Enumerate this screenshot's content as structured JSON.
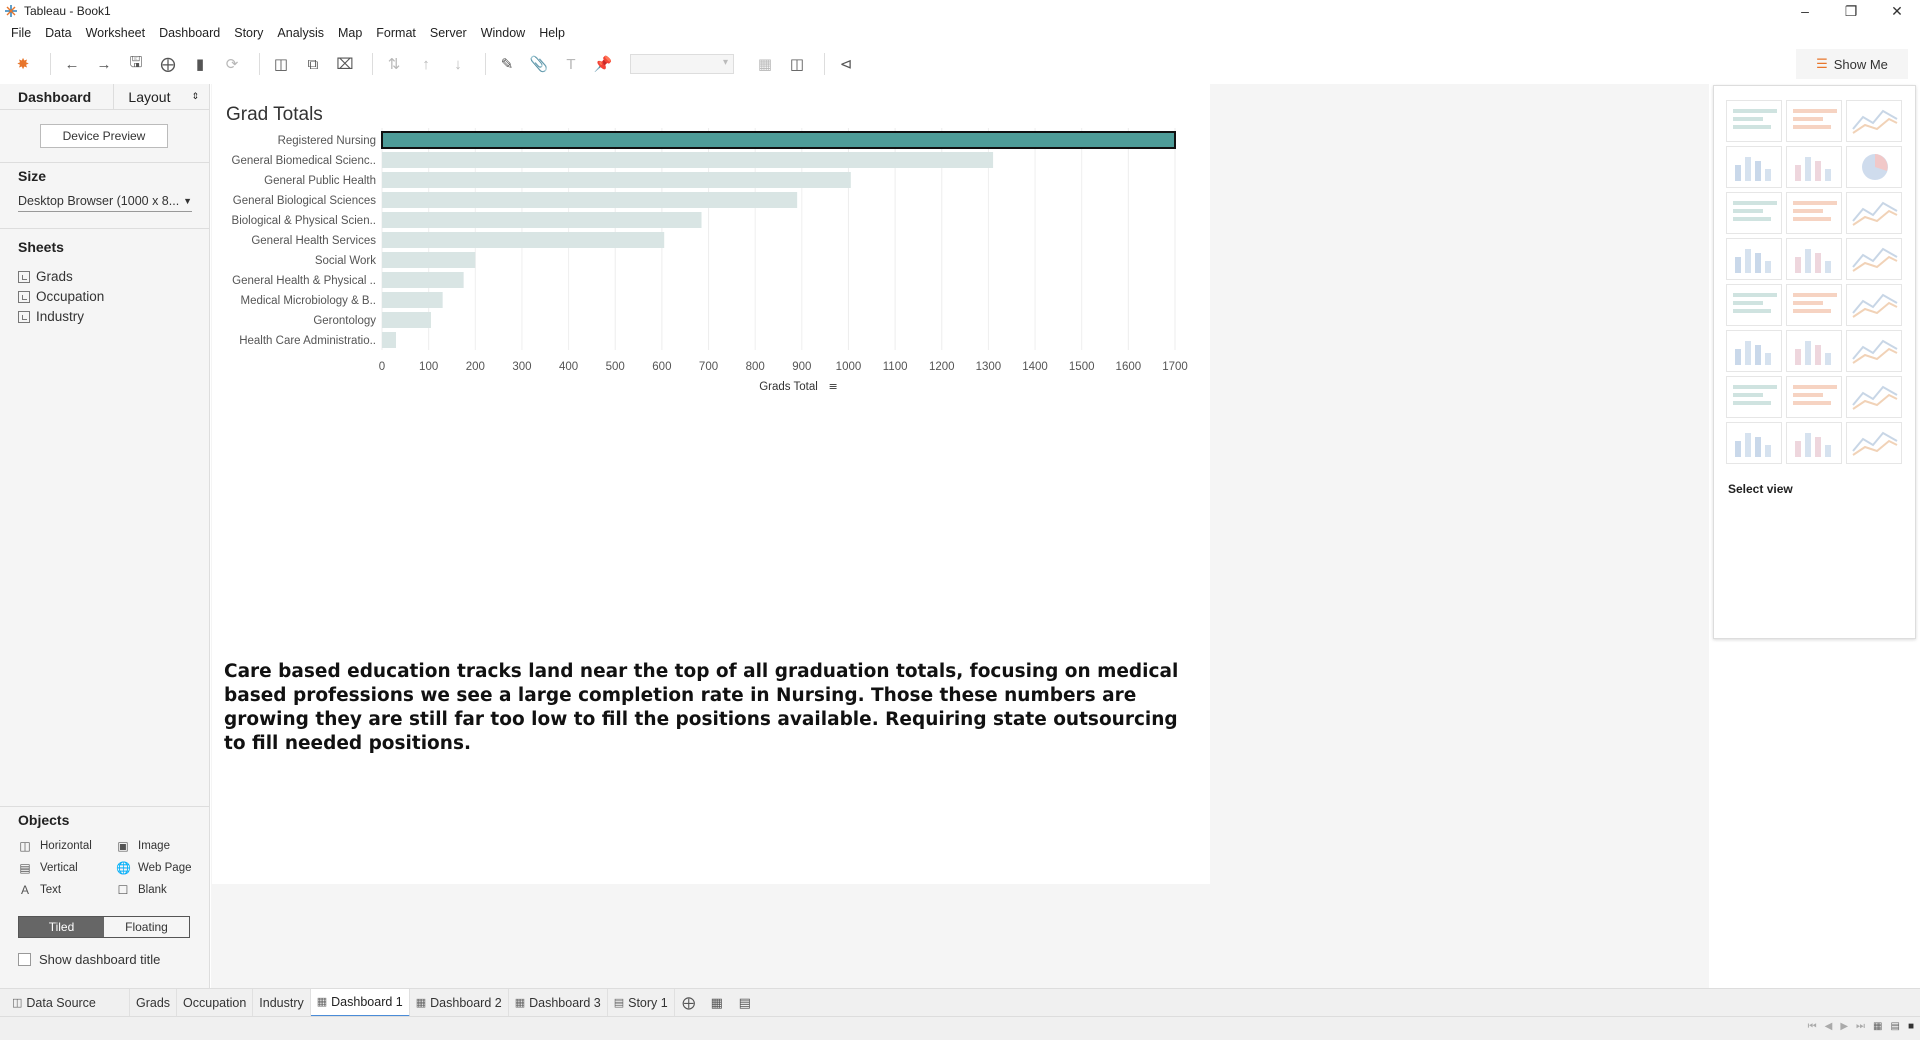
{
  "window": {
    "title": "Tableau - Book1"
  },
  "menu": [
    "File",
    "Data",
    "Worksheet",
    "Dashboard",
    "Story",
    "Analysis",
    "Map",
    "Format",
    "Server",
    "Window",
    "Help"
  ],
  "toolbar": {
    "show_me_label": "Show Me"
  },
  "left_panel": {
    "tab_dashboard": "Dashboard",
    "tab_layout": "Layout",
    "device_preview": "Device Preview",
    "size_heading": "Size",
    "size_value": "Desktop Browser (1000 x 8...",
    "sheets_heading": "Sheets",
    "sheets": [
      "Grads",
      "Occupation",
      "Industry"
    ],
    "objects_heading": "Objects",
    "objects": {
      "horizontal": "Horizontal",
      "image": "Image",
      "vertical": "Vertical",
      "web_page": "Web Page",
      "text": "Text",
      "blank": "Blank"
    },
    "tiled": "Tiled",
    "floating": "Floating",
    "show_title": "Show dashboard title"
  },
  "dashboard": {
    "description": "Care based education tracks land near the top of all graduation totals, focusing on medical based professions we see a large completion rate in Nursing. Those these numbers are growing they are still far too low to fill the positions available. Requiring state outsourcing to fill needed positions."
  },
  "chart_data": {
    "type": "bar",
    "orientation": "horizontal",
    "title": "Grad Totals",
    "xlabel": "Grads Total",
    "ylabel": "",
    "xlim": [
      0,
      1700
    ],
    "xticks": [
      0,
      100,
      200,
      300,
      400,
      500,
      600,
      700,
      800,
      900,
      1000,
      1100,
      1200,
      1300,
      1400,
      1500,
      1600,
      1700
    ],
    "categories": [
      "Registered Nursing",
      "General Biomedical Scienc..",
      "General Public Health",
      "General Biological Sciences",
      "Biological & Physical Scien..",
      "General Health Services",
      "Social Work",
      "General Health & Physical ..",
      "Medical Microbiology & B..",
      "Gerontology",
      "Health Care Administratio.."
    ],
    "values": [
      1700,
      1310,
      1005,
      890,
      685,
      605,
      200,
      175,
      130,
      105,
      30
    ],
    "highlighted": "Registered Nursing",
    "colors": {
      "selected": "#4e9c98",
      "unselected": "#d9e5e4",
      "outline": "#111111"
    },
    "grid": true
  },
  "show_me": {
    "hint": "Select view"
  },
  "bottom_tabs": [
    {
      "label": "Data Source",
      "icon": "datasource-icon"
    },
    {
      "label": "Grads",
      "icon": ""
    },
    {
      "label": "Occupation",
      "icon": ""
    },
    {
      "label": "Industry",
      "icon": ""
    },
    {
      "label": "Dashboard 1",
      "icon": "dashboard-icon"
    },
    {
      "label": "Dashboard 2",
      "icon": "dashboard-icon"
    },
    {
      "label": "Dashboard 3",
      "icon": "dashboard-icon"
    },
    {
      "label": "Story 1",
      "icon": "story-icon"
    }
  ]
}
